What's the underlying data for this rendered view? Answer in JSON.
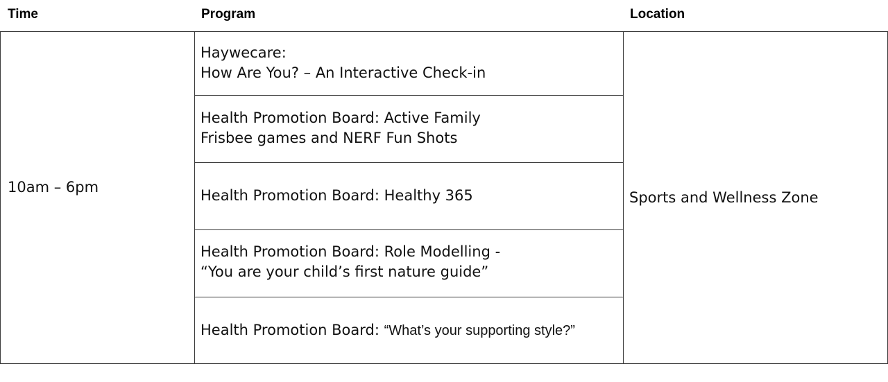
{
  "table": {
    "headers": {
      "time": "Time",
      "program": "Program",
      "location": "Location"
    },
    "time": "10am – 6pm",
    "location": "Sports and Wellness Zone",
    "programs": [
      {
        "line1": "Haywecare:",
        "line2": "How Are You? – An Interactive Check-in"
      },
      {
        "line1": "Health Promotion Board: Active Family",
        "line2": "Frisbee games and NERF Fun Shots"
      },
      {
        "line1": "Health Promotion Board: Healthy 365"
      },
      {
        "line1": "Health Promotion Board: Role Modelling -",
        "line2": "“You are your child’s first nature guide”"
      },
      {
        "line1_prefix": "Health Promotion Board: ",
        "line1_quote": "“What’s your supporting style?”"
      }
    ]
  }
}
